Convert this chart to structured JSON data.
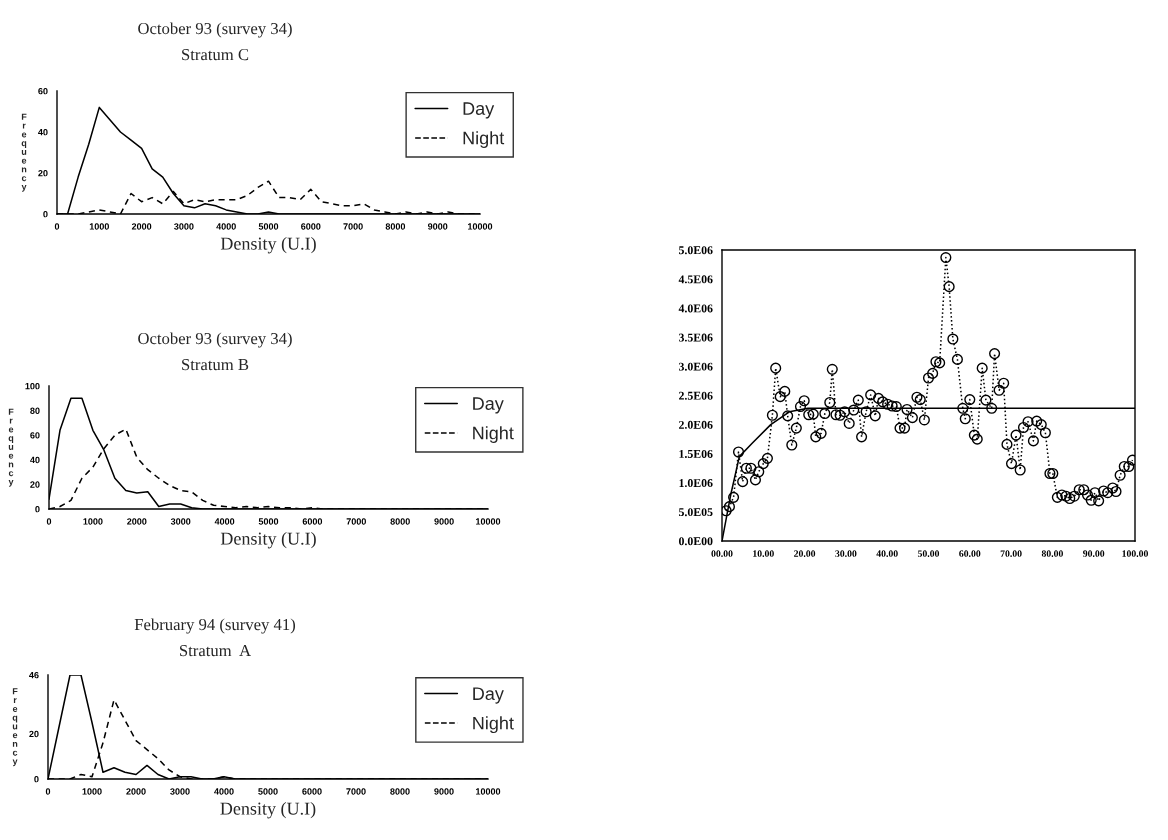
{
  "chart_data": [
    {
      "type": "line",
      "title": "October 93 (survey 34)",
      "subtitle": "Stratum C",
      "xlabel": "Density (U.I)",
      "ylabel": "Frequency",
      "x": [
        0,
        250,
        500,
        750,
        1000,
        1250,
        1500,
        1750,
        2000,
        2250,
        2500,
        2750,
        3000,
        3250,
        3500,
        3750,
        4000,
        4250,
        4500,
        4750,
        5000,
        5250,
        5500,
        5750,
        6000,
        6250,
        6500,
        6750,
        7000,
        7250,
        7500,
        7750,
        8000,
        8250,
        8500,
        8750,
        9000,
        9250,
        9500,
        9750,
        10000
      ],
      "series": [
        {
          "name": "Day",
          "color": "#000000",
          "line_style": "solid",
          "values": [
            0,
            0,
            18,
            34,
            52,
            46,
            40,
            36,
            32,
            22,
            18,
            10,
            4,
            3,
            5,
            4,
            2,
            1,
            0,
            0,
            1,
            0,
            0,
            0,
            0,
            0,
            0,
            0,
            0,
            0,
            0,
            0,
            0,
            0,
            0,
            0,
            0,
            0,
            0,
            0,
            0
          ]
        },
        {
          "name": "Night",
          "color": "#000000",
          "line_style": "dashed",
          "values": [
            0,
            0,
            0,
            1,
            2,
            1,
            0,
            10,
            6,
            8,
            5,
            11,
            5,
            7,
            6,
            7,
            7,
            7,
            9,
            13,
            16,
            8,
            8,
            7,
            12,
            6,
            5,
            4,
            4,
            5,
            2,
            1,
            0,
            1,
            0,
            1,
            0,
            1,
            0,
            0,
            0
          ]
        }
      ],
      "xlim": [
        0,
        10000
      ],
      "xticks": [
        0,
        1000,
        2000,
        3000,
        4000,
        5000,
        6000,
        7000,
        8000,
        9000,
        10000
      ],
      "ylim": [
        0,
        60
      ],
      "yticks": [
        0,
        20,
        40,
        60
      ],
      "legend": "top right"
    },
    {
      "type": "line",
      "title": "October 93 (survey 34)",
      "subtitle": "Stratum B",
      "xlabel": "Density (U.I)",
      "ylabel": "Frequency",
      "x": [
        0,
        250,
        500,
        750,
        1000,
        1250,
        1500,
        1750,
        2000,
        2250,
        2500,
        2750,
        3000,
        3250,
        3500,
        3750,
        4000,
        4250,
        4500,
        4750,
        5000,
        5250,
        5500,
        5750,
        6000,
        6250,
        6500,
        6750,
        7000,
        7250,
        7500,
        7750,
        8000,
        8250,
        8500,
        8750,
        9000,
        9250,
        9500,
        9750,
        10000
      ],
      "series": [
        {
          "name": "Day",
          "color": "#000000",
          "line_style": "solid",
          "values": [
            8,
            64,
            90,
            90,
            64,
            48,
            25,
            15,
            13,
            14,
            2,
            4,
            4,
            1,
            0,
            0,
            0,
            0,
            0,
            0,
            0,
            0,
            0,
            0,
            0,
            0,
            0,
            0,
            0,
            0,
            0,
            0,
            0,
            0,
            0,
            0,
            0,
            0,
            0,
            0,
            0
          ]
        },
        {
          "name": "Night",
          "color": "#000000",
          "line_style": "dashed",
          "values": [
            0,
            2,
            7,
            25,
            34,
            49,
            60,
            65,
            42,
            32,
            25,
            19,
            15,
            14,
            7,
            3,
            2,
            1,
            2,
            1,
            2,
            1,
            1,
            0,
            1,
            0,
            0,
            0,
            0,
            0,
            0,
            0,
            0,
            0,
            0,
            0,
            0,
            0,
            0,
            0,
            0
          ]
        }
      ],
      "xlim": [
        0,
        10000
      ],
      "xticks": [
        0,
        1000,
        2000,
        3000,
        4000,
        5000,
        6000,
        7000,
        8000,
        9000,
        10000
      ],
      "ylim": [
        0,
        100
      ],
      "yticks": [
        0,
        20,
        40,
        60,
        80,
        100
      ],
      "legend": "top right"
    },
    {
      "type": "line",
      "title": "February 94 (survey 41)",
      "subtitle": "Stratum  A",
      "xlabel": "Density (U.I)",
      "ylabel": "Frequency",
      "x": [
        0,
        250,
        500,
        750,
        1000,
        1250,
        1500,
        1750,
        2000,
        2250,
        2500,
        2750,
        3000,
        3250,
        3500,
        3750,
        4000,
        4250,
        4500,
        4750,
        5000,
        5250,
        5500,
        5750,
        6000,
        6250,
        6500,
        6750,
        7000,
        7250,
        7500,
        7750,
        8000,
        8250,
        8500,
        8750,
        9000,
        9250,
        9500,
        9750,
        10000
      ],
      "series": [
        {
          "name": "Day",
          "color": "#000000",
          "line_style": "solid",
          "values": [
            0,
            23,
            46,
            46,
            25,
            3,
            5,
            3,
            2,
            6,
            2,
            0,
            1,
            1,
            0,
            0,
            1,
            0,
            0,
            0,
            0,
            0,
            0,
            0,
            0,
            0,
            0,
            0,
            0,
            0,
            0,
            0,
            0,
            0,
            0,
            0,
            0,
            0,
            0,
            0,
            0
          ]
        },
        {
          "name": "Night",
          "color": "#000000",
          "line_style": "dashed",
          "values": [
            0,
            0,
            0,
            2,
            1,
            16,
            35,
            26,
            17,
            13,
            9,
            4,
            1,
            0,
            0,
            0,
            1,
            0,
            0,
            0,
            0,
            0,
            0,
            0,
            0,
            0,
            0,
            0,
            0,
            0,
            0,
            0,
            0,
            0,
            0,
            0,
            0,
            0,
            0,
            0,
            0
          ]
        }
      ],
      "xlim": [
        0,
        10000
      ],
      "xticks": [
        0,
        1000,
        2000,
        3000,
        4000,
        5000,
        6000,
        7000,
        8000,
        9000,
        10000
      ],
      "ylim": [
        0,
        46
      ],
      "yticks": [
        0,
        20,
        46
      ],
      "legend": "top right"
    },
    {
      "type": "line",
      "series": [
        {
          "color": "#000000",
          "line_style": "dotted",
          "marker": "circle",
          "x": [
            1.0,
            1.8,
            2.8,
            4.0,
            5.0,
            5.9,
            7.0,
            8.1,
            8.9,
            10.0,
            11.0,
            12.2,
            13.0,
            14.1,
            15.2,
            15.9,
            16.9,
            18.0,
            19.0,
            19.9,
            21.0,
            22.1,
            22.7,
            24.0,
            24.9,
            26.1,
            26.7,
            27.6,
            28.6,
            29.7,
            30.8,
            31.9,
            33.0,
            33.8,
            34.9,
            36.0,
            37.1,
            37.9,
            38.9,
            40.1,
            41.2,
            42.2,
            43.1,
            44.2,
            44.8,
            46.1,
            47.2,
            48.0,
            49.0,
            50.0,
            51.0,
            51.8,
            52.7,
            54.2,
            55.0,
            55.9,
            57.0,
            58.3,
            58.9,
            60.0,
            61.1,
            61.8,
            63.0,
            63.9,
            65.3,
            66.0,
            67.1,
            68.2,
            69.0,
            70.1,
            71.2,
            72.2,
            73.0,
            74.1,
            75.4,
            76.2,
            77.3,
            78.3,
            79.4,
            80.1,
            81.2,
            82.3,
            83.3,
            84.2,
            85.3,
            86.5,
            87.6,
            88.5,
            89.4,
            90.3,
            91.2,
            92.4,
            93.4,
            94.6,
            95.4,
            96.4,
            97.4,
            98.5,
            99.4
          ],
          "values": [
            520000,
            590000,
            750000,
            1530000,
            1020000,
            1250000,
            1250000,
            1050000,
            1190000,
            1330000,
            1420000,
            2160000,
            2970000,
            2480000,
            2570000,
            2150000,
            1650000,
            1940000,
            2310000,
            2410000,
            2170000,
            2180000,
            1790000,
            1850000,
            2190000,
            2380000,
            2950000,
            2170000,
            2160000,
            2220000,
            2020000,
            2250000,
            2420000,
            1790000,
            2220000,
            2510000,
            2150000,
            2450000,
            2390000,
            2350000,
            2320000,
            2310000,
            1940000,
            1940000,
            2260000,
            2120000,
            2470000,
            2430000,
            2080000,
            2800000,
            2880000,
            3080000,
            3060000,
            4870000,
            4370000,
            3470000,
            3120000,
            2280000,
            2100000,
            2430000,
            1820000,
            1750000,
            2970000,
            2420000,
            2280000,
            3220000,
            2590000,
            2710000,
            1660000,
            1330000,
            1820000,
            1220000,
            1950000,
            2050000,
            1720000,
            2060000,
            2000000,
            1860000,
            1160000,
            1160000,
            750000,
            790000,
            770000,
            730000,
            770000,
            880000,
            880000,
            790000,
            700000,
            830000,
            690000,
            860000,
            830000,
            910000,
            850000,
            1130000,
            1280000,
            1280000,
            1390000
          ]
        },
        {
          "color": "#000000",
          "line_style": "solid",
          "marker": "none",
          "x": [
            0,
            2.1,
            4.2,
            7.3,
            11.8,
            16.3,
            20.8,
            100
          ],
          "values": [
            0,
            790000,
            1450000,
            1680000,
            2000000,
            2220000,
            2280000,
            2280000
          ]
        }
      ],
      "xlim": [
        0,
        100
      ],
      "xticks": [
        {
          "value": 0,
          "label": "00.00"
        },
        {
          "value": 10,
          "label": "10.00"
        },
        {
          "value": 20,
          "label": "20.00"
        },
        {
          "value": 30,
          "label": "30.00"
        },
        {
          "value": 40,
          "label": "40.00"
        },
        {
          "value": 50,
          "label": "50.00"
        },
        {
          "value": 60,
          "label": "60.00"
        },
        {
          "value": 70,
          "label": "70.00"
        },
        {
          "value": 80,
          "label": "80.00"
        },
        {
          "value": 90,
          "label": "90.00"
        },
        {
          "value": 100,
          "label": "100.00"
        }
      ],
      "ylim": [
        0,
        5000000
      ],
      "yticks": [
        {
          "value": 0,
          "label": "0.0E00"
        },
        {
          "value": 500000,
          "label": "5.0E05"
        },
        {
          "value": 1000000,
          "label": "1.0E06"
        },
        {
          "value": 1500000,
          "label": "1.5E06"
        },
        {
          "value": 2000000,
          "label": "2.0E06"
        },
        {
          "value": 2500000,
          "label": "2.5E06"
        },
        {
          "value": 3000000,
          "label": "3.0E06"
        },
        {
          "value": 3500000,
          "label": "3.5E06"
        },
        {
          "value": 4000000,
          "label": "4.0E06"
        },
        {
          "value": 4500000,
          "label": "4.5E06"
        },
        {
          "value": 5000000,
          "label": "5.0E06"
        }
      ]
    }
  ]
}
